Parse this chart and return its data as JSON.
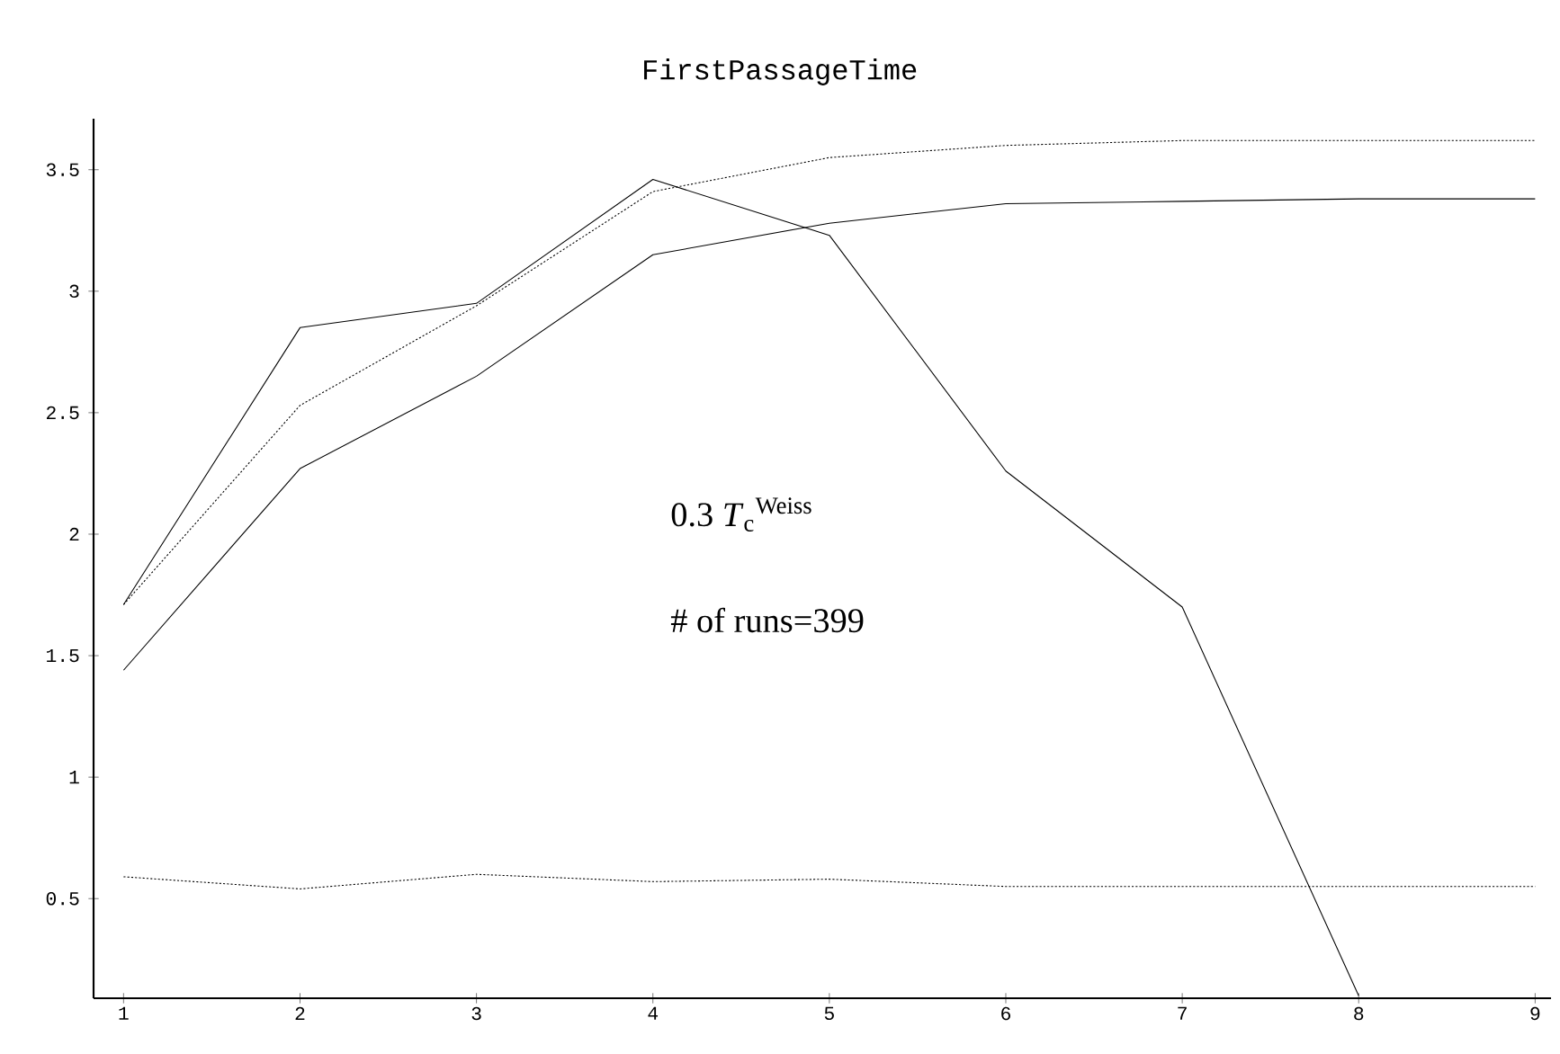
{
  "chart_data": {
    "type": "line",
    "title": "FirstPassageTime",
    "x": [
      1,
      2,
      3,
      4,
      5,
      6,
      7,
      8,
      9
    ],
    "series": [
      {
        "color": "#000000",
        "line_style": "solid",
        "values": [
          1.71,
          2.85,
          2.95,
          3.46,
          3.23,
          2.26,
          1.7,
          0.1,
          null
        ]
      },
      {
        "color": "#000000",
        "line_style": "dotted",
        "values": [
          1.71,
          2.53,
          2.94,
          3.41,
          3.55,
          3.6,
          3.62,
          3.62,
          3.62
        ]
      },
      {
        "color": "#000000",
        "line_style": "solid",
        "values": [
          1.44,
          2.27,
          2.65,
          3.15,
          3.28,
          3.36,
          3.37,
          3.38,
          3.38
        ]
      },
      {
        "color": "#000000",
        "line_style": "dotted",
        "values": [
          0.59,
          0.54,
          0.6,
          0.57,
          0.58,
          0.55,
          0.55,
          0.55,
          0.55
        ]
      }
    ],
    "xlim": [
      0.83,
      9.09
    ],
    "ylim": [
      0.09,
      3.71
    ],
    "xticks": [
      1,
      2,
      3,
      4,
      5,
      6,
      7,
      8,
      9
    ],
    "yticks": [
      0.5,
      1,
      1.5,
      2,
      2.5,
      3,
      3.5
    ],
    "annotations": [
      "0.3 *T*$_{c}$$^{Weiss}$",
      "# of runs=399"
    ],
    "grid": false,
    "marker": "none"
  }
}
